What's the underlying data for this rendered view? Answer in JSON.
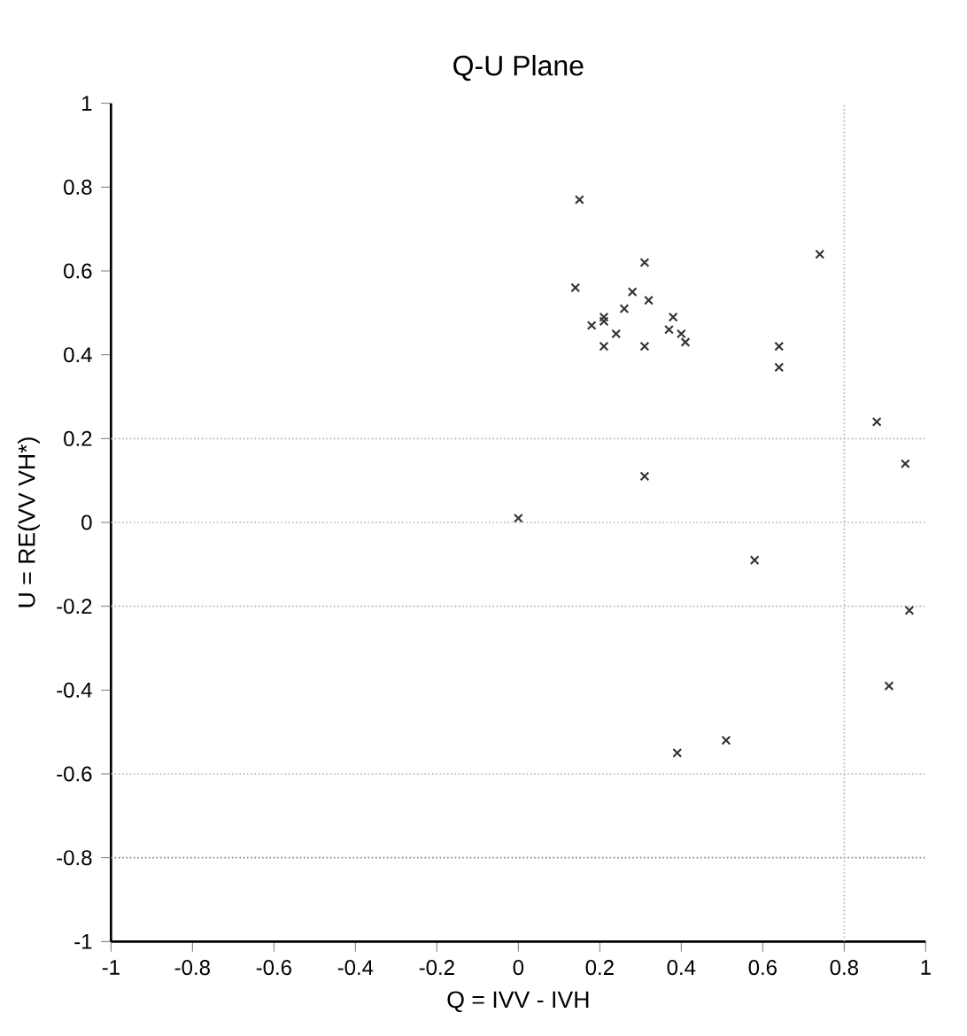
{
  "chart_data": {
    "type": "scatter",
    "title": "Q-U Plane",
    "xlabel": "Q = IVV - IVH",
    "ylabel": "U = RE(VV VH*)",
    "xlim": [
      -1,
      1
    ],
    "ylim": [
      -1,
      1
    ],
    "xticks": [
      -1,
      -0.8,
      -0.6,
      -0.4,
      -0.2,
      0,
      0.2,
      0.4,
      0.6,
      0.8,
      1
    ],
    "yticks": [
      -1,
      -0.8,
      -0.6,
      -0.4,
      -0.2,
      0,
      0.2,
      0.4,
      0.6,
      0.8,
      1
    ],
    "marker": "cross",
    "grid": false,
    "ref_lines": [
      {
        "axis": "y",
        "value": 0.2,
        "color": "#b0b0b0",
        "line_style": "dotted"
      },
      {
        "axis": "y",
        "value": 0,
        "color": "#b0b0b0",
        "line_style": "dotted"
      },
      {
        "axis": "y",
        "value": -0.2,
        "color": "#b0b0b0",
        "line_style": "dotted"
      },
      {
        "axis": "y",
        "value": -0.6,
        "color": "#b0b0b0",
        "line_style": "dotted"
      },
      {
        "axis": "y",
        "value": -0.8,
        "color": "#808080",
        "line_style": "dotted"
      },
      {
        "axis": "x",
        "value": 0.8,
        "color": "#b0b0b0",
        "line_style": "dotted"
      }
    ],
    "series": [
      {
        "color": "#333333",
        "x": [
          0.15,
          0.31,
          0.74,
          0.14,
          0.28,
          0.32,
          0.26,
          0.21,
          0.21,
          0.18,
          0.24,
          0.38,
          0.37,
          0.4,
          0.41,
          0.21,
          0.31,
          0.64,
          0.64,
          0.88,
          0.95,
          0.31,
          0.0,
          0.58,
          0.96,
          0.91,
          0.39,
          0.51
        ],
        "values": [
          0.77,
          0.62,
          0.64,
          0.56,
          0.55,
          0.53,
          0.51,
          0.49,
          0.48,
          0.47,
          0.45,
          0.49,
          0.46,
          0.45,
          0.43,
          0.42,
          0.42,
          0.42,
          0.37,
          0.24,
          0.14,
          0.11,
          0.01,
          -0.09,
          -0.21,
          -0.39,
          -0.55,
          -0.52
        ]
      }
    ]
  }
}
